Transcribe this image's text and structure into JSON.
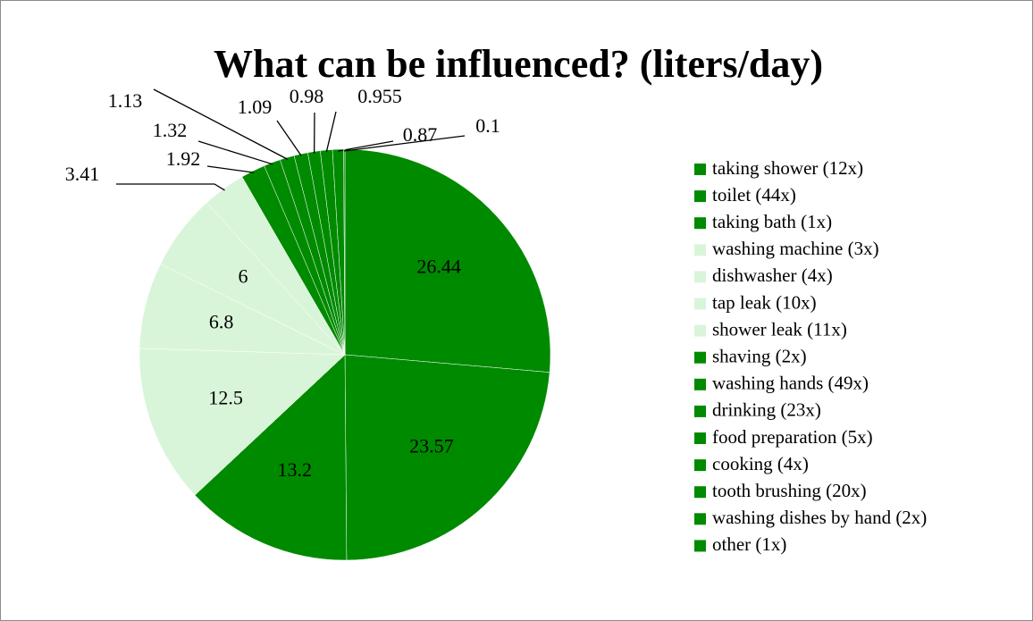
{
  "chart_data": {
    "type": "pie",
    "title": "What can be influenced? (liters/day)",
    "labels": [
      "taking shower (12x)",
      "toilet (44x)",
      "taking bath (1x)",
      "washing machine (3x)",
      "dishwasher (4x)",
      "tap leak (10x)",
      "shower leak (11x)",
      "shaving (2x)",
      "washing hands (49x)",
      "drinking (23x)",
      "food preparation (5x)",
      "cooking (4x)",
      "tooth brushing (20x)",
      "washing dishes by hand (2x)",
      "other (1x)"
    ],
    "values": [
      26.44,
      23.57,
      13.2,
      12.5,
      6.8,
      6,
      3.41,
      1.92,
      1.32,
      1.13,
      1.09,
      0.98,
      0.955,
      0.87,
      0.1
    ],
    "colors": [
      "#008a00",
      "#008a00",
      "#008a00",
      "#d9f5d9",
      "#d9f5d9",
      "#d9f5d9",
      "#d9f5d9",
      "#008a00",
      "#008a00",
      "#008a00",
      "#008a00",
      "#008a00",
      "#008a00",
      "#008a00",
      "#008a00"
    ],
    "legend": "right"
  }
}
